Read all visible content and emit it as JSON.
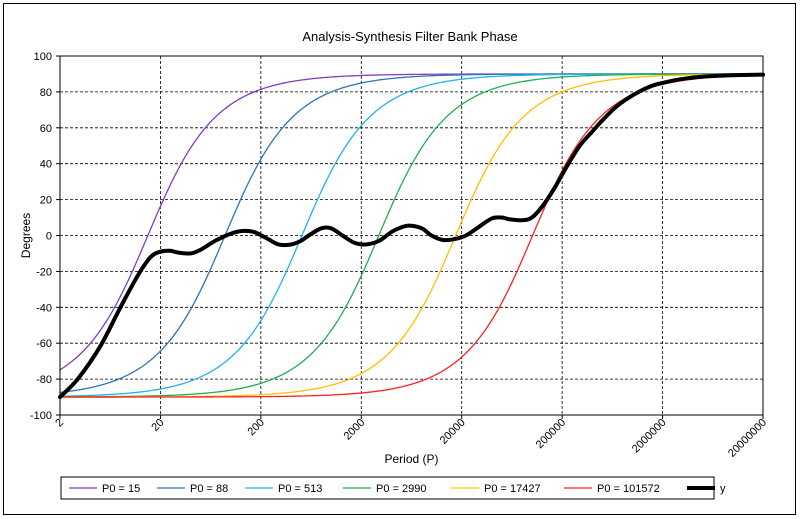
{
  "chart_data": {
    "type": "line",
    "title": "Analysis-Synthesis Filter Bank Phase",
    "xlabel": "Period (P)",
    "ylabel": "Degrees",
    "xscale": "log",
    "xlim": [
      2,
      20000000
    ],
    "ylim": [
      -100,
      100
    ],
    "x_ticks": [
      "2",
      "20",
      "200",
      "2000",
      "20000",
      "200000",
      "2000000",
      "20000000"
    ],
    "y_ticks": [
      "100",
      "80",
      "60",
      "40",
      "20",
      "0",
      "-20",
      "-40",
      "-60",
      "-80",
      "-100"
    ],
    "grid": true,
    "legend_position": "bottom",
    "series": [
      {
        "name": "P0 = 15",
        "color": "#7f3fbf",
        "width": 1.3,
        "p0": 15
      },
      {
        "name": "P0 = 88",
        "color": "#2e75b6",
        "width": 1.3,
        "p0": 88
      },
      {
        "name": "P0 = 513",
        "color": "#1fb5e8",
        "width": 1.3,
        "p0": 513
      },
      {
        "name": "P0 = 2990",
        "color": "#1fae54",
        "width": 1.3,
        "p0": 2990
      },
      {
        "name": "P0 = 17427",
        "color": "#ffc000",
        "width": 1.3,
        "p0": 17427
      },
      {
        "name": "P0 = 101572",
        "color": "#ff2020",
        "width": 1.3,
        "p0": 101572
      },
      {
        "name": "y",
        "color": "#000000",
        "width": 4,
        "x": [
          2,
          3,
          5,
          8,
          12,
          16,
          20,
          25,
          30,
          40,
          50,
          70,
          100,
          130,
          170,
          220,
          300,
          400,
          500,
          600,
          800,
          1000,
          1300,
          1700,
          2200,
          3000,
          4000,
          5000,
          6000,
          8000,
          10000,
          13000,
          17000,
          22000,
          30000,
          40000,
          50000,
          60000,
          80000,
          100000,
          130000,
          170000,
          220000,
          300000,
          400000,
          500000,
          700000,
          1000000,
          1500000,
          2000000,
          3000000,
          5000000,
          10000000,
          20000000
        ],
        "values": [
          -90,
          -80,
          -62,
          -40,
          -22,
          -12,
          -9,
          -8.5,
          -9.5,
          -10,
          -8,
          -3,
          1,
          2.5,
          2,
          -1,
          -5,
          -5,
          -3,
          0,
          4,
          4,
          0,
          -4,
          -5,
          -3,
          2,
          4.5,
          5.5,
          4,
          0,
          -2.5,
          -2,
          0,
          5,
          9.5,
          10,
          9,
          8.5,
          10,
          17,
          27,
          38,
          50,
          58,
          64,
          72,
          78,
          83,
          85,
          87,
          88.5,
          89.3,
          89.6
        ]
      }
    ]
  }
}
